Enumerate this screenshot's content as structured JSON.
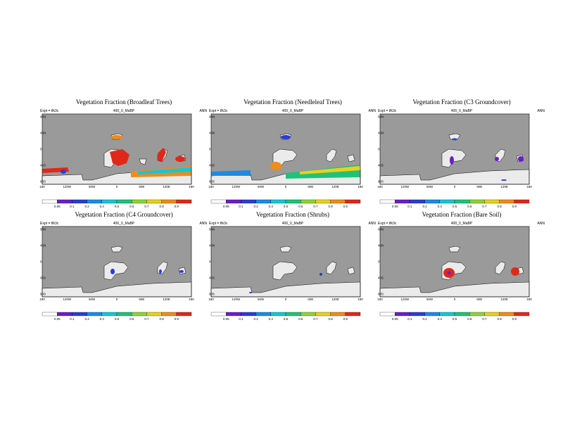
{
  "colors": {
    "ocean": "#9a9a9a",
    "land_empty": "#ebebeb",
    "palette": [
      "#ffffff",
      "#6a1fc6",
      "#2b3cd6",
      "#1b8be6",
      "#17c6d6",
      "#1fc27a",
      "#8fd23a",
      "#e6d21f",
      "#f08c1a",
      "#e0281a"
    ]
  },
  "colorbar_labels": [
    "0.05",
    "0.1",
    "0.2",
    "0.4",
    "0.5",
    "0.6",
    "0.7",
    "0.8",
    "0.9"
  ],
  "lat_labels": [
    "90N",
    "45N",
    "0",
    "45S",
    "90S"
  ],
  "lon_labels": [
    "180",
    "120W",
    "60W",
    "0",
    "60E",
    "120E",
    "180"
  ],
  "panels": [
    {
      "title": "Vegetation Fraction (Broadleaf Trees)",
      "expt": "Expt = tfk3c",
      "run": "400_0_MaBP",
      "season": "ANN"
    },
    {
      "title": "Vegetation Fraction (Needleleaf Trees)",
      "expt": "Expt = tfk3c",
      "run": "400_0_MaBP",
      "season": "ANN"
    },
    {
      "title": "Vegetation Fraction (C3 Groundcover)",
      "expt": "Expt = tfk3c",
      "run": "400_0_MaBP",
      "season": "ANN"
    },
    {
      "title": "Vegetation Fraction (C4 Groundcover)",
      "expt": "Expt = tfk3c",
      "run": "400_0_MaBP",
      "season": "ANN"
    },
    {
      "title": "Vegetation Fraction (Shrubs)",
      "expt": "Expt = tfk3c",
      "run": "400_0_MaBP",
      "season": "ANN"
    },
    {
      "title": "Vegetation Fraction (Bare Soil)",
      "expt": "Expt = tfk3c",
      "run": "400_0_MaBP",
      "season": "ANN"
    }
  ]
}
